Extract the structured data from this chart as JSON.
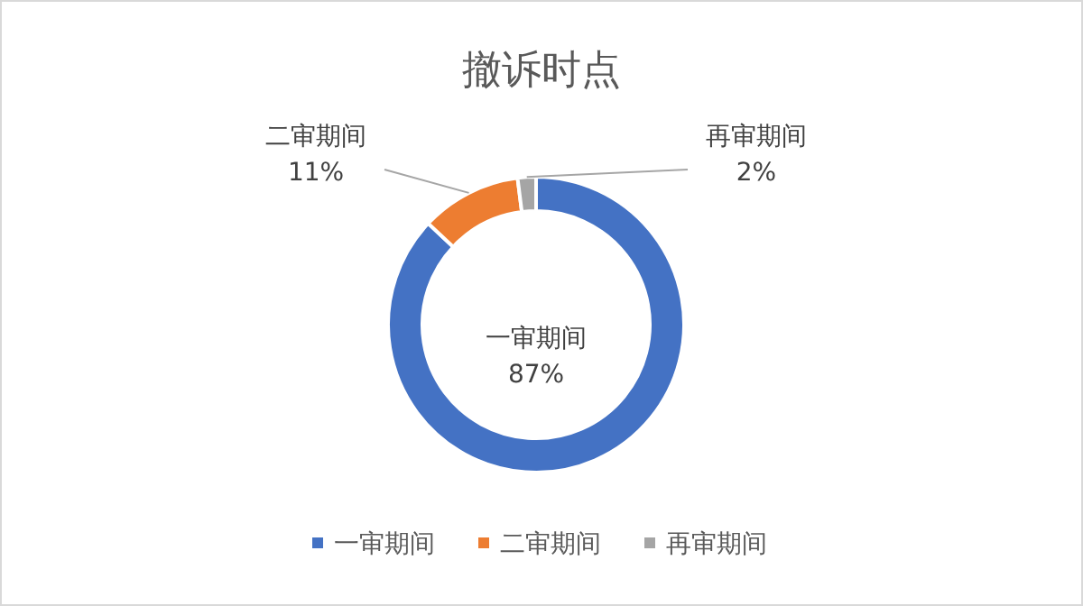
{
  "chart_data": {
    "type": "donut",
    "title": "撤诉时点",
    "categories": [
      "一审期间",
      "二审期间",
      "再审期间"
    ],
    "values": [
      87,
      11,
      2
    ],
    "value_labels": [
      "87%",
      "11%",
      "2%"
    ],
    "colors": [
      "#4472c4",
      "#ed7d31",
      "#a5a5a5"
    ],
    "legend": "bottom"
  }
}
